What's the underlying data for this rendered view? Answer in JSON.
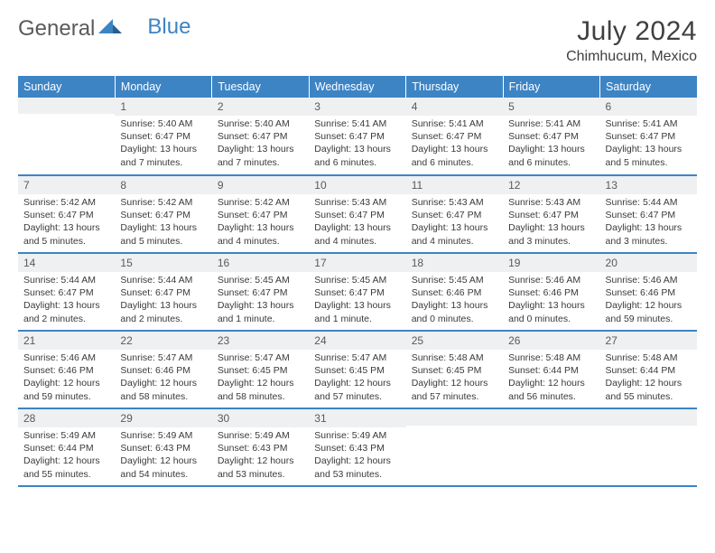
{
  "logo": {
    "text1": "General",
    "text2": "Blue"
  },
  "title": "July 2024",
  "location": "Chimhucum, Mexico",
  "colors": {
    "header_bg": "#3d84c5",
    "header_fg": "#ffffff",
    "daynum_bg": "#eef0f1",
    "row_border": "#3d84c5",
    "text": "#3a3a3a",
    "title": "#404040"
  },
  "weekdays": [
    "Sunday",
    "Monday",
    "Tuesday",
    "Wednesday",
    "Thursday",
    "Friday",
    "Saturday"
  ],
  "weeks": [
    [
      {
        "n": "",
        "sr": "",
        "ss": "",
        "dl1": "",
        "dl2": ""
      },
      {
        "n": "1",
        "sr": "Sunrise: 5:40 AM",
        "ss": "Sunset: 6:47 PM",
        "dl1": "Daylight: 13 hours",
        "dl2": "and 7 minutes."
      },
      {
        "n": "2",
        "sr": "Sunrise: 5:40 AM",
        "ss": "Sunset: 6:47 PM",
        "dl1": "Daylight: 13 hours",
        "dl2": "and 7 minutes."
      },
      {
        "n": "3",
        "sr": "Sunrise: 5:41 AM",
        "ss": "Sunset: 6:47 PM",
        "dl1": "Daylight: 13 hours",
        "dl2": "and 6 minutes."
      },
      {
        "n": "4",
        "sr": "Sunrise: 5:41 AM",
        "ss": "Sunset: 6:47 PM",
        "dl1": "Daylight: 13 hours",
        "dl2": "and 6 minutes."
      },
      {
        "n": "5",
        "sr": "Sunrise: 5:41 AM",
        "ss": "Sunset: 6:47 PM",
        "dl1": "Daylight: 13 hours",
        "dl2": "and 6 minutes."
      },
      {
        "n": "6",
        "sr": "Sunrise: 5:41 AM",
        "ss": "Sunset: 6:47 PM",
        "dl1": "Daylight: 13 hours",
        "dl2": "and 5 minutes."
      }
    ],
    [
      {
        "n": "7",
        "sr": "Sunrise: 5:42 AM",
        "ss": "Sunset: 6:47 PM",
        "dl1": "Daylight: 13 hours",
        "dl2": "and 5 minutes."
      },
      {
        "n": "8",
        "sr": "Sunrise: 5:42 AM",
        "ss": "Sunset: 6:47 PM",
        "dl1": "Daylight: 13 hours",
        "dl2": "and 5 minutes."
      },
      {
        "n": "9",
        "sr": "Sunrise: 5:42 AM",
        "ss": "Sunset: 6:47 PM",
        "dl1": "Daylight: 13 hours",
        "dl2": "and 4 minutes."
      },
      {
        "n": "10",
        "sr": "Sunrise: 5:43 AM",
        "ss": "Sunset: 6:47 PM",
        "dl1": "Daylight: 13 hours",
        "dl2": "and 4 minutes."
      },
      {
        "n": "11",
        "sr": "Sunrise: 5:43 AM",
        "ss": "Sunset: 6:47 PM",
        "dl1": "Daylight: 13 hours",
        "dl2": "and 4 minutes."
      },
      {
        "n": "12",
        "sr": "Sunrise: 5:43 AM",
        "ss": "Sunset: 6:47 PM",
        "dl1": "Daylight: 13 hours",
        "dl2": "and 3 minutes."
      },
      {
        "n": "13",
        "sr": "Sunrise: 5:44 AM",
        "ss": "Sunset: 6:47 PM",
        "dl1": "Daylight: 13 hours",
        "dl2": "and 3 minutes."
      }
    ],
    [
      {
        "n": "14",
        "sr": "Sunrise: 5:44 AM",
        "ss": "Sunset: 6:47 PM",
        "dl1": "Daylight: 13 hours",
        "dl2": "and 2 minutes."
      },
      {
        "n": "15",
        "sr": "Sunrise: 5:44 AM",
        "ss": "Sunset: 6:47 PM",
        "dl1": "Daylight: 13 hours",
        "dl2": "and 2 minutes."
      },
      {
        "n": "16",
        "sr": "Sunrise: 5:45 AM",
        "ss": "Sunset: 6:47 PM",
        "dl1": "Daylight: 13 hours",
        "dl2": "and 1 minute."
      },
      {
        "n": "17",
        "sr": "Sunrise: 5:45 AM",
        "ss": "Sunset: 6:47 PM",
        "dl1": "Daylight: 13 hours",
        "dl2": "and 1 minute."
      },
      {
        "n": "18",
        "sr": "Sunrise: 5:45 AM",
        "ss": "Sunset: 6:46 PM",
        "dl1": "Daylight: 13 hours",
        "dl2": "and 0 minutes."
      },
      {
        "n": "19",
        "sr": "Sunrise: 5:46 AM",
        "ss": "Sunset: 6:46 PM",
        "dl1": "Daylight: 13 hours",
        "dl2": "and 0 minutes."
      },
      {
        "n": "20",
        "sr": "Sunrise: 5:46 AM",
        "ss": "Sunset: 6:46 PM",
        "dl1": "Daylight: 12 hours",
        "dl2": "and 59 minutes."
      }
    ],
    [
      {
        "n": "21",
        "sr": "Sunrise: 5:46 AM",
        "ss": "Sunset: 6:46 PM",
        "dl1": "Daylight: 12 hours",
        "dl2": "and 59 minutes."
      },
      {
        "n": "22",
        "sr": "Sunrise: 5:47 AM",
        "ss": "Sunset: 6:46 PM",
        "dl1": "Daylight: 12 hours",
        "dl2": "and 58 minutes."
      },
      {
        "n": "23",
        "sr": "Sunrise: 5:47 AM",
        "ss": "Sunset: 6:45 PM",
        "dl1": "Daylight: 12 hours",
        "dl2": "and 58 minutes."
      },
      {
        "n": "24",
        "sr": "Sunrise: 5:47 AM",
        "ss": "Sunset: 6:45 PM",
        "dl1": "Daylight: 12 hours",
        "dl2": "and 57 minutes."
      },
      {
        "n": "25",
        "sr": "Sunrise: 5:48 AM",
        "ss": "Sunset: 6:45 PM",
        "dl1": "Daylight: 12 hours",
        "dl2": "and 57 minutes."
      },
      {
        "n": "26",
        "sr": "Sunrise: 5:48 AM",
        "ss": "Sunset: 6:44 PM",
        "dl1": "Daylight: 12 hours",
        "dl2": "and 56 minutes."
      },
      {
        "n": "27",
        "sr": "Sunrise: 5:48 AM",
        "ss": "Sunset: 6:44 PM",
        "dl1": "Daylight: 12 hours",
        "dl2": "and 55 minutes."
      }
    ],
    [
      {
        "n": "28",
        "sr": "Sunrise: 5:49 AM",
        "ss": "Sunset: 6:44 PM",
        "dl1": "Daylight: 12 hours",
        "dl2": "and 55 minutes."
      },
      {
        "n": "29",
        "sr": "Sunrise: 5:49 AM",
        "ss": "Sunset: 6:43 PM",
        "dl1": "Daylight: 12 hours",
        "dl2": "and 54 minutes."
      },
      {
        "n": "30",
        "sr": "Sunrise: 5:49 AM",
        "ss": "Sunset: 6:43 PM",
        "dl1": "Daylight: 12 hours",
        "dl2": "and 53 minutes."
      },
      {
        "n": "31",
        "sr": "Sunrise: 5:49 AM",
        "ss": "Sunset: 6:43 PM",
        "dl1": "Daylight: 12 hours",
        "dl2": "and 53 minutes."
      },
      {
        "n": "",
        "sr": "",
        "ss": "",
        "dl1": "",
        "dl2": ""
      },
      {
        "n": "",
        "sr": "",
        "ss": "",
        "dl1": "",
        "dl2": ""
      },
      {
        "n": "",
        "sr": "",
        "ss": "",
        "dl1": "",
        "dl2": ""
      }
    ]
  ]
}
